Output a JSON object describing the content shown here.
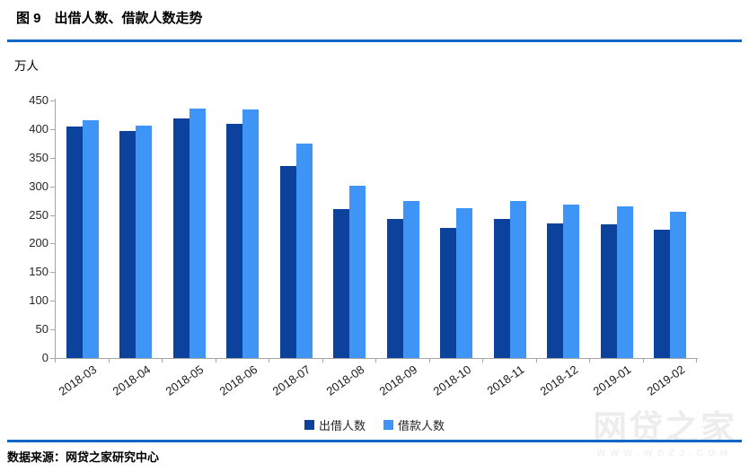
{
  "header": {
    "title": "图 9　出借人数、借款人数走势"
  },
  "footer": {
    "source": "数据来源：网贷之家研究中心"
  },
  "watermark": {
    "logo": "网贷之家",
    "url": "WWW.WDZJ.COM"
  },
  "colors": {
    "divider_blue": "#0a66c4",
    "axis_gray": "#a6a6a6",
    "lenders_dark_blue": "#0c429c",
    "borrowers_light_blue": "#3e95f5",
    "tick_text": "#262626",
    "watermark_gray": "#ededed"
  },
  "chart_data": {
    "type": "bar",
    "title": "出借人数、借款人数走势",
    "unit_label": "万人",
    "categories": [
      "2018-03",
      "2018-04",
      "2018-05",
      "2018-06",
      "2018-07",
      "2018-08",
      "2018-09",
      "2018-10",
      "2018-11",
      "2018-12",
      "2019-01",
      "2019-02"
    ],
    "series": [
      {
        "name": "出借人数",
        "color": "#0c429c",
        "values": [
          405,
          396,
          418,
          410,
          335,
          260,
          243,
          228,
          243,
          235,
          234,
          224
        ]
      },
      {
        "name": "借款人数",
        "color": "#3e95f5",
        "values": [
          416,
          406,
          436,
          435,
          374,
          301,
          274,
          262,
          275,
          268,
          265,
          255
        ]
      }
    ],
    "ylim": [
      0,
      450
    ],
    "ytick_step": 50,
    "grid": false,
    "legend_position": "bottom",
    "x_tick_label_rotation": -35
  }
}
